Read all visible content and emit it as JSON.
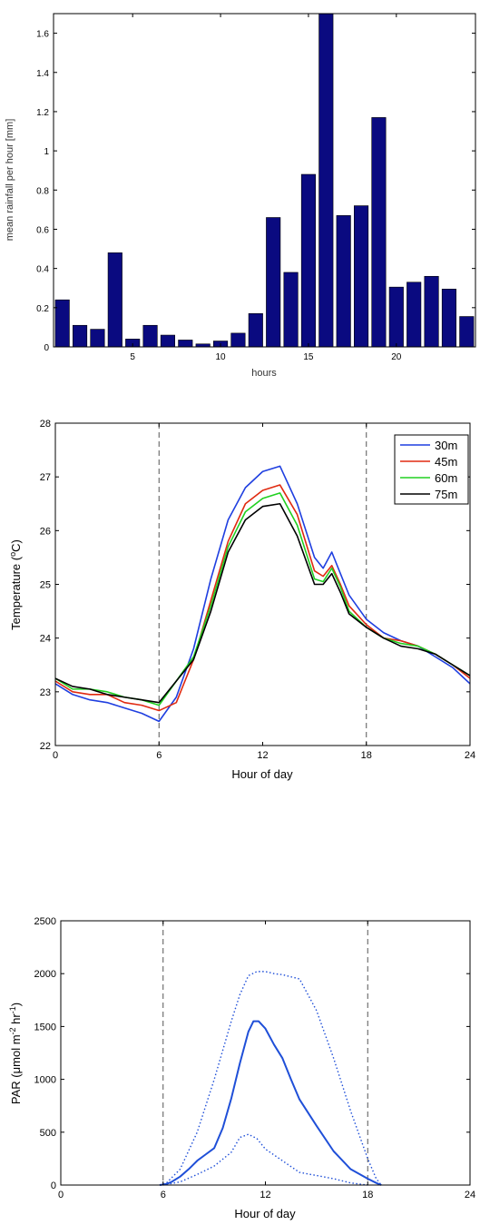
{
  "chart_data": [
    {
      "type": "bar",
      "title": "",
      "xlabel": "hours",
      "ylabel": "mean rainfall per hour [mm]",
      "xlim": [
        0.5,
        24.5
      ],
      "ylim": [
        0,
        1.7
      ],
      "xticks": [
        5,
        10,
        15,
        20
      ],
      "yticks": [
        0,
        0.2,
        0.4,
        0.6,
        0.8,
        1,
        1.2,
        1.4,
        1.6
      ],
      "ytick_labels": [
        "0",
        "0.2",
        "0.4",
        "0.6",
        "0.8",
        "1",
        "1.2",
        "1.4",
        "1.6"
      ],
      "bar_color": "#0a0a80",
      "x": [
        1,
        2,
        3,
        4,
        5,
        6,
        7,
        8,
        9,
        10,
        11,
        12,
        13,
        14,
        15,
        16,
        17,
        18,
        19,
        20,
        21,
        22,
        23,
        24
      ],
      "values": [
        0.24,
        0.11,
        0.09,
        0.48,
        0.04,
        0.11,
        0.06,
        0.035,
        0.015,
        0.03,
        0.07,
        0.17,
        0.66,
        0.38,
        0.88,
        1.71,
        0.67,
        0.72,
        1.17,
        0.305,
        0.33,
        0.36,
        0.295,
        0.155
      ]
    },
    {
      "type": "line",
      "title": "",
      "xlabel": "Hour of day",
      "ylabel": "Temperature (°C)",
      "ylabel_parts": [
        "Temperature (",
        "o",
        "C)"
      ],
      "xlim": [
        0,
        24
      ],
      "ylim": [
        22,
        28
      ],
      "xticks": [
        0,
        6,
        12,
        18,
        24
      ],
      "yticks": [
        22,
        23,
        24,
        25,
        26,
        27,
        28
      ],
      "vlines": [
        6,
        18
      ],
      "legend_position": "top-right",
      "x": [
        0,
        1,
        2,
        3,
        4,
        5,
        6,
        7,
        8,
        9,
        10,
        11,
        12,
        13,
        14,
        15,
        15.5,
        16,
        16.5,
        17,
        18,
        19,
        20,
        21,
        22,
        23,
        24
      ],
      "series": [
        {
          "name": "30m",
          "color": "#1f3fe0",
          "values": [
            23.15,
            22.95,
            22.85,
            22.8,
            22.7,
            22.6,
            22.45,
            22.9,
            23.8,
            25.1,
            26.2,
            26.8,
            27.1,
            27.2,
            26.5,
            25.5,
            25.3,
            25.6,
            25.2,
            24.8,
            24.35,
            24.1,
            23.95,
            23.85,
            23.65,
            23.45,
            23.15
          ]
        },
        {
          "name": "45m",
          "color": "#e02a10",
          "values": [
            23.2,
            23.0,
            22.95,
            22.95,
            22.8,
            22.75,
            22.65,
            22.8,
            23.6,
            24.7,
            25.8,
            26.5,
            26.75,
            26.85,
            26.3,
            25.25,
            25.15,
            25.35,
            25.0,
            24.6,
            24.25,
            24.0,
            23.95,
            23.85,
            23.7,
            23.5,
            23.25
          ]
        },
        {
          "name": "60m",
          "color": "#20d020",
          "values": [
            23.25,
            23.05,
            23.05,
            23.0,
            22.9,
            22.85,
            22.75,
            23.2,
            23.65,
            24.6,
            25.7,
            26.35,
            26.6,
            26.7,
            26.1,
            25.1,
            25.05,
            25.3,
            24.95,
            24.5,
            24.2,
            24.0,
            23.9,
            23.85,
            23.7,
            23.5,
            23.3
          ]
        },
        {
          "name": "75m",
          "color": "#000000",
          "values": [
            23.25,
            23.1,
            23.05,
            22.95,
            22.9,
            22.85,
            22.8,
            23.2,
            23.6,
            24.5,
            25.6,
            26.2,
            26.45,
            26.5,
            25.9,
            25.0,
            25.0,
            25.2,
            24.85,
            24.45,
            24.2,
            24.0,
            23.85,
            23.8,
            23.7,
            23.5,
            23.3
          ]
        }
      ]
    },
    {
      "type": "line",
      "title": "",
      "xlabel": "Hour of day",
      "ylabel": "PAR (µmol m⁻² hr⁻¹)",
      "ylabel_parts": [
        "PAR (",
        "μ",
        "mol m",
        "-2",
        " hr",
        "-1",
        ")"
      ],
      "xlim": [
        0,
        24
      ],
      "ylim": [
        0,
        2500
      ],
      "xticks": [
        0,
        6,
        12,
        18,
        24
      ],
      "yticks": [
        0,
        500,
        1000,
        1500,
        2000,
        2500
      ],
      "vlines": [
        6,
        18
      ],
      "color": "#1f4fd8",
      "series": [
        {
          "style": "solid",
          "x": [
            5.8,
            6.2,
            6.5,
            7,
            7.5,
            8,
            8.5,
            9,
            9.5,
            10,
            10.5,
            11,
            11.3,
            11.6,
            12,
            12.5,
            13,
            13.5,
            14,
            15,
            16,
            17,
            18,
            18.5,
            18.8
          ],
          "values": [
            0,
            10,
            30,
            80,
            150,
            230,
            290,
            350,
            540,
            820,
            1150,
            1450,
            1550,
            1550,
            1480,
            1330,
            1200,
            1000,
            810,
            560,
            320,
            150,
            60,
            20,
            0
          ]
        },
        {
          "style": "dotted",
          "x": [
            5.8,
            6.2,
            7,
            8,
            9,
            10,
            10.5,
            11,
            11.5,
            12,
            12.5,
            13,
            14,
            15,
            16,
            17,
            18,
            18.5,
            18.8
          ],
          "values": [
            0,
            20,
            150,
            500,
            1000,
            1550,
            1800,
            1980,
            2020,
            2020,
            2000,
            1990,
            1950,
            1650,
            1200,
            700,
            250,
            60,
            0
          ]
        },
        {
          "style": "dotted",
          "x": [
            6,
            7,
            8,
            9,
            10,
            10.5,
            11,
            11.5,
            12,
            13,
            14,
            15,
            16,
            17,
            18
          ],
          "values": [
            0,
            30,
            100,
            180,
            310,
            450,
            480,
            440,
            340,
            230,
            120,
            90,
            60,
            20,
            0
          ]
        }
      ]
    }
  ]
}
